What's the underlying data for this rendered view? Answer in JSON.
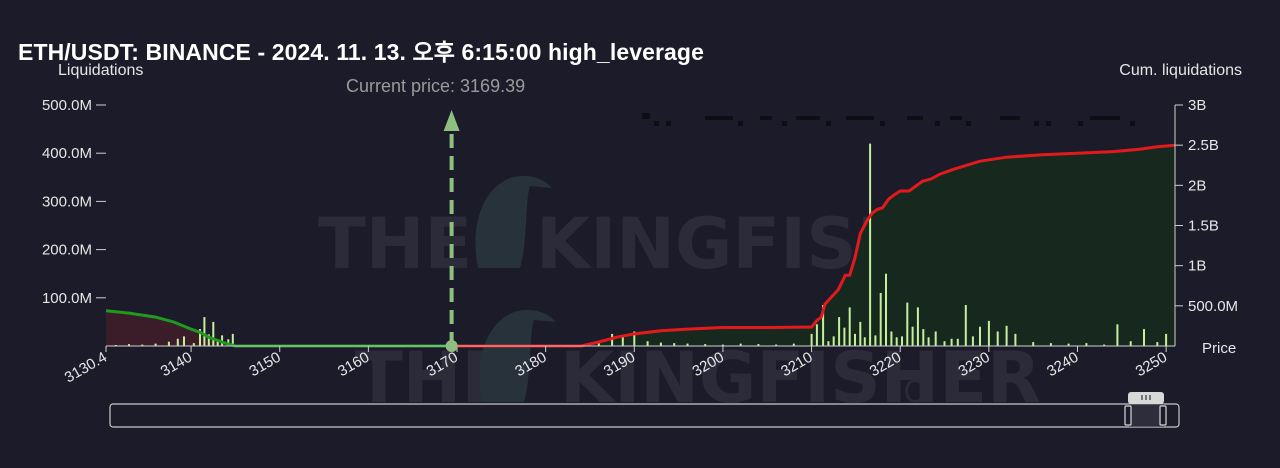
{
  "title": "ETH/USDT: BINANCE - 2024. 11. 13. 오후 6:15:00 high_leverage",
  "watermark": {
    "main": "THE",
    "brand": "KINGFISHER",
    "suffix": ".IO"
  },
  "colors": {
    "background": "#1b1b29",
    "bars": "#c6ef9c",
    "cum_short": "#e31a1c",
    "cum_long": "#1f9a1f",
    "fill_short": "#17291f",
    "fill_long": "#3a1d28",
    "current_price_marker": "#8fbf7f",
    "axis_text": "#e6e6e6"
  },
  "chart_data": {
    "type": "bar",
    "title": "ETH/USDT: BINANCE - 2024. 11. 13. 오후 6:15:00 high_leverage",
    "xlabel": "Price",
    "ylabel": "Liquidations",
    "y2label": "Cum. liquidations",
    "xlim": [
      3130.4,
      3251
    ],
    "ylim": [
      0,
      500000000
    ],
    "y2lim": [
      0,
      3000000000
    ],
    "x_ticks": [
      "3130.4",
      "3140",
      "3150",
      "3160",
      "3170",
      "3180",
      "3190",
      "3200",
      "3210",
      "3220",
      "3230",
      "3240",
      "3250"
    ],
    "x_tick_values": [
      3130.4,
      3140,
      3150,
      3160,
      3170,
      3180,
      3190,
      3200,
      3210,
      3220,
      3230,
      3240,
      3250
    ],
    "y_ticks": [
      "500.0M",
      "400.0M",
      "300.0M",
      "200.0M",
      "100.0M"
    ],
    "y_tick_values": [
      500000000,
      400000000,
      300000000,
      200000000,
      100000000
    ],
    "y2_ticks": [
      "3B",
      "2.5B",
      "2B",
      "1.5B",
      "1B",
      "500.0M"
    ],
    "y2_tick_values": [
      3000000000,
      2500000000,
      2000000000,
      1500000000,
      1000000000,
      500000000
    ],
    "current_price": 3169.39,
    "current_price_label": "Current price: 3169.39",
    "grid": false,
    "legend": "none",
    "bars": {
      "x": [
        3131.5,
        3133,
        3134.5,
        3136,
        3137.5,
        3138.5,
        3139.2,
        3140.3,
        3141,
        3141.5,
        3142,
        3142.5,
        3143,
        3143.5,
        3144.2,
        3144.7,
        3186,
        3187.5,
        3188.7,
        3190,
        3191.5,
        3193,
        3194.5,
        3196,
        3198,
        3200,
        3202,
        3204,
        3206,
        3208,
        3210,
        3210.6,
        3211.3,
        3211.9,
        3212.5,
        3213.1,
        3213.7,
        3214.3,
        3214.9,
        3215.5,
        3216,
        3216.6,
        3217.2,
        3217.8,
        3218.4,
        3219,
        3219.6,
        3220.2,
        3220.8,
        3221.4,
        3222,
        3222.6,
        3223.2,
        3224,
        3225,
        3225.8,
        3226.5,
        3227.4,
        3228.2,
        3229,
        3230,
        3231,
        3232,
        3233,
        3235,
        3237,
        3239,
        3241,
        3243,
        3244.5,
        3246,
        3247.5,
        3249,
        3250
      ],
      "values": [
        2000000,
        4000000,
        3000000,
        5000000,
        9000000,
        15000000,
        20000000,
        6000000,
        35000000,
        60000000,
        24000000,
        50000000,
        10000000,
        22000000,
        14000000,
        25000000,
        8000000,
        25000000,
        20000000,
        30000000,
        10000000,
        7000000,
        6000000,
        5000000,
        4000000,
        3000000,
        5000000,
        4000000,
        3000000,
        5000000,
        25000000,
        45000000,
        85000000,
        10000000,
        20000000,
        60000000,
        38000000,
        80000000,
        25000000,
        50000000,
        18000000,
        420000000,
        22000000,
        110000000,
        150000000,
        30000000,
        18000000,
        20000000,
        90000000,
        40000000,
        80000000,
        35000000,
        18000000,
        30000000,
        10000000,
        15000000,
        15000000,
        85000000,
        20000000,
        40000000,
        52000000,
        30000000,
        42000000,
        25000000,
        8000000,
        6000000,
        5000000,
        6000000,
        3000000,
        45000000,
        10000000,
        35000000,
        8000000,
        25000000
      ]
    },
    "cum_short": {
      "name": "",
      "x": [
        3169.39,
        3184,
        3186,
        3188,
        3190,
        3193,
        3196,
        3200,
        3205,
        3209,
        3210,
        3210.6,
        3211.1,
        3211.5,
        3212,
        3213,
        3213.8,
        3214.3,
        3214.9,
        3215.5,
        3216.2,
        3216.8,
        3217.4,
        3218,
        3218.7,
        3219.3,
        3220,
        3221,
        3222.5,
        3223.5,
        3224.5,
        3226,
        3229,
        3232,
        3236,
        3240,
        3244,
        3247,
        3249,
        3251
      ],
      "values": [
        0,
        0,
        50000000,
        110000000,
        150000000,
        190000000,
        210000000,
        230000000,
        230000000,
        235000000,
        235000000,
        320000000,
        360000000,
        520000000,
        580000000,
        700000000,
        880000000,
        880000000,
        1100000000,
        1400000000,
        1550000000,
        1650000000,
        1700000000,
        1720000000,
        1830000000,
        1880000000,
        1930000000,
        1930000000,
        2050000000,
        2080000000,
        2140000000,
        2200000000,
        2300000000,
        2350000000,
        2380000000,
        2400000000,
        2420000000,
        2450000000,
        2480000000,
        2500000000
      ]
    },
    "cum_long": {
      "name": "",
      "x": [
        3130.4,
        3133,
        3136,
        3138,
        3140,
        3141,
        3142,
        3143,
        3144,
        3145,
        3169.39
      ],
      "values": [
        440000000,
        410000000,
        360000000,
        300000000,
        210000000,
        170000000,
        110000000,
        70000000,
        30000000,
        0,
        0
      ]
    }
  }
}
